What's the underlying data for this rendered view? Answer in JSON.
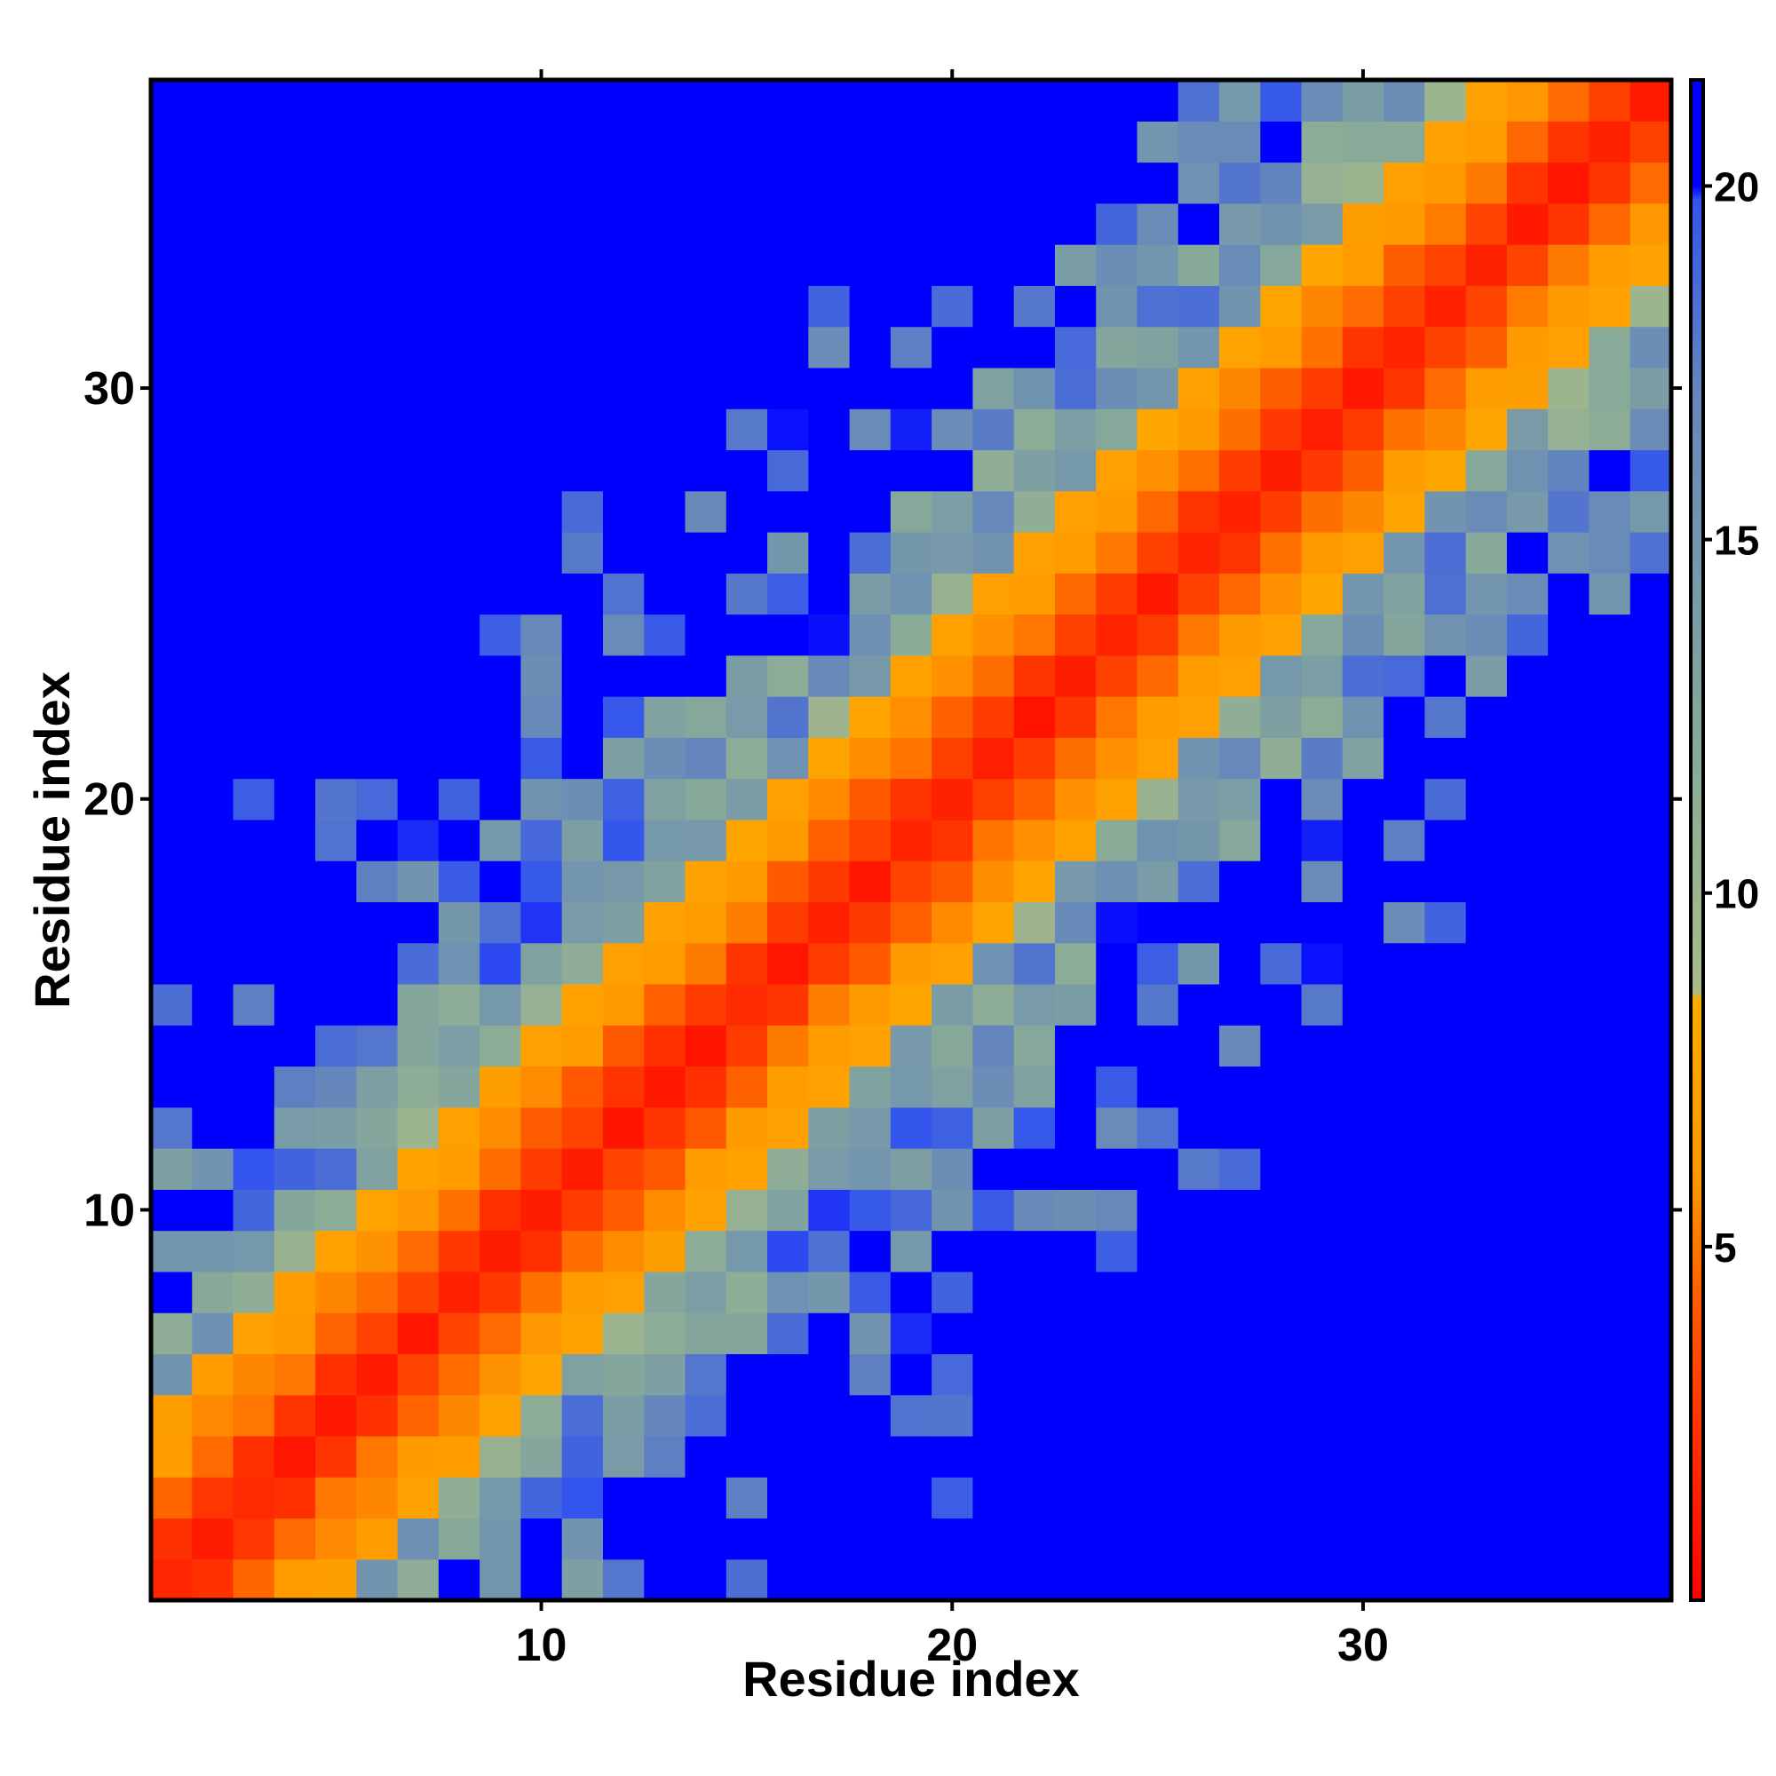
{
  "chart_data": {
    "type": "heatmap",
    "xlabel": "Residue index",
    "ylabel": "Residue index",
    "n": 37,
    "x_ticks": [
      10,
      20,
      30
    ],
    "y_ticks": [
      10,
      20,
      30
    ],
    "colorbar": {
      "ticks": [
        5,
        10,
        15,
        20
      ],
      "range": [
        0,
        21.5
      ],
      "stops": [
        {
          "value": 0,
          "color": "#ff0000"
        },
        {
          "value": 4,
          "color": "#ff5500"
        },
        {
          "value": 6,
          "color": "#ff9900"
        },
        {
          "value": 8.5,
          "color": "#ffaa00"
        },
        {
          "value": 8.6,
          "color": "#aabb88"
        },
        {
          "value": 12,
          "color": "#88aa99"
        },
        {
          "value": 17,
          "color": "#6688bb"
        },
        {
          "value": 19.8,
          "color": "#3355ee"
        },
        {
          "value": 20,
          "color": "#0000ff"
        },
        {
          "value": 21.5,
          "color": "#0000ff"
        }
      ]
    },
    "description_of_values": "Symmetric residue-residue distance map; diagonal band near 0 (red), far pairs saturate at ~21 (blue).",
    "distance_model": {
      "band": [
        [
          0,
          1.5
        ],
        [
          1,
          2.8
        ],
        [
          2,
          4.6
        ],
        [
          3,
          6.0
        ],
        [
          4,
          7.2
        ]
      ],
      "growth_per_residue": 1.35,
      "saturation": 21,
      "cap": 20.5
    }
  }
}
